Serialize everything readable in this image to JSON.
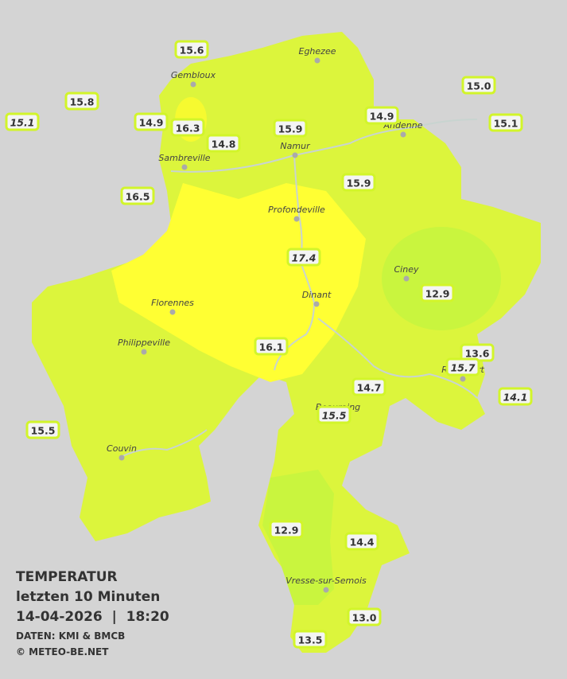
{
  "title": {
    "line1": "TEMPERATUR",
    "line2": "letzten 10 Minuten",
    "line3": "14-04-2026  |  18:20",
    "credit1": "DATEN: KMI & BMCB",
    "credit2": "© METEO-BE.NET"
  },
  "cities": [
    "Eghezee",
    "Gembloux",
    "Andenne",
    "Namur",
    "Sambreville",
    "Profondeville",
    "Ciney",
    "Dinant",
    "Florennes",
    "Philippeville",
    "Rochefort",
    "Beauraing",
    "Couvin",
    "Vresse-sur-Semois"
  ],
  "stations": [
    {
      "value": "15.6",
      "italic": false
    },
    {
      "value": "15.8",
      "italic": false
    },
    {
      "value": "15.1",
      "italic": true
    },
    {
      "value": "14.9",
      "italic": false
    },
    {
      "value": "16.3",
      "italic": false
    },
    {
      "value": "14.8",
      "italic": false
    },
    {
      "value": "15.9",
      "italic": false
    },
    {
      "value": "14.9",
      "italic": false
    },
    {
      "value": "15.0",
      "italic": false
    },
    {
      "value": "15.1",
      "italic": false
    },
    {
      "value": "16.5",
      "italic": false
    },
    {
      "value": "15.9",
      "italic": false
    },
    {
      "value": "17.4",
      "italic": true
    },
    {
      "value": "12.9",
      "italic": false
    },
    {
      "value": "16.1",
      "italic": false
    },
    {
      "value": "13.6",
      "italic": false
    },
    {
      "value": "15.7",
      "italic": true
    },
    {
      "value": "14.1",
      "italic": true
    },
    {
      "value": "14.7",
      "italic": false
    },
    {
      "value": "15.5",
      "italic": true
    },
    {
      "value": "15.5",
      "italic": false
    },
    {
      "value": "12.9",
      "italic": false
    },
    {
      "value": "14.4",
      "italic": false
    },
    {
      "value": "13.0",
      "italic": false
    },
    {
      "value": "13.5",
      "italic": false
    }
  ]
}
